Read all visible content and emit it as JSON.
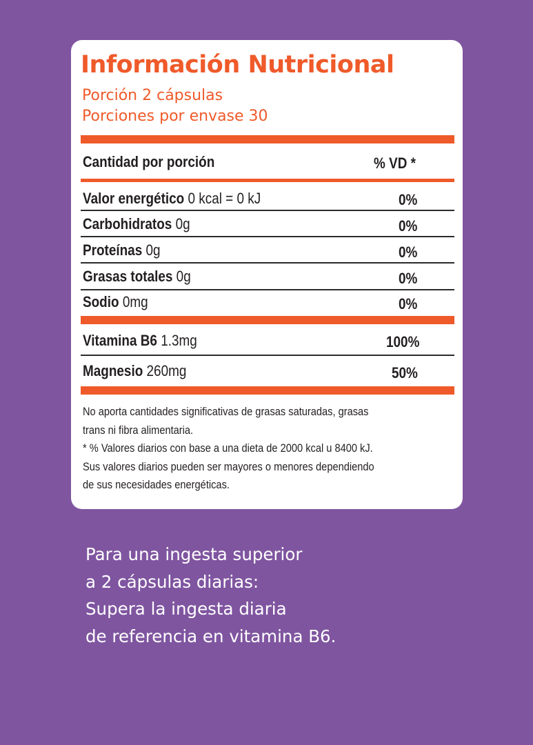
{
  "colors": {
    "background": "#7f55a0",
    "accent": "#ef5a2a",
    "card": "#ffffff",
    "text": "#231f20"
  },
  "panel": {
    "title": "Información Nutricional",
    "serving": "Porción 2 cápsulas",
    "servings_per_container": "Porciones por envase 30",
    "header_left": "Cantidad por porción",
    "header_right": "% VD *",
    "rows": [
      {
        "name": "Valor energético",
        "amount": "0 kcal = 0 kJ",
        "dv": "0%"
      },
      {
        "name": "Carbohidratos",
        "amount": "0g",
        "dv": "0%"
      },
      {
        "name": "Proteínas",
        "amount": "0g",
        "dv": "0%"
      },
      {
        "name": "Grasas totales",
        "amount": "0g",
        "dv": "0%"
      },
      {
        "name": "Sodio",
        "amount": "0mg",
        "dv": "0%"
      }
    ],
    "extra_rows": [
      {
        "name": "Vitamina B6",
        "amount": "1.3mg",
        "dv": "100%"
      },
      {
        "name": "Magnesio",
        "amount": "260mg",
        "dv": "50%"
      }
    ],
    "notes": [
      "No aporta cantidades significativas de grasas saturadas, grasas",
      "trans ni fibra alimentaria.",
      "* % Valores diarios con base a una dieta de 2000 kcal u 8400 kJ.",
      "Sus valores diarios pueden ser mayores o menores dependiendo",
      "de sus necesidades energéticas."
    ]
  },
  "footer": {
    "lines": [
      "Para una ingesta superior",
      "a 2 cápsulas diarias:",
      "Supera la ingesta diaria",
      "de referencia en vitamina B6."
    ]
  }
}
